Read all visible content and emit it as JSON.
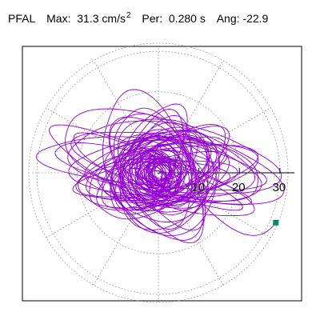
{
  "header": {
    "station": "PFAL",
    "max_label": "Max:",
    "max_value": "31.3",
    "max_unit": "cm/s",
    "max_unit_sup": "2",
    "per_label": "Per:",
    "per_value": "0.280",
    "per_unit": "s",
    "ang_label": "Ang:",
    "ang_value": "-22.9"
  },
  "chart_data": {
    "type": "scatter",
    "plot_kind": "polar particle-motion trace",
    "title": "",
    "ring_labels": [
      "10",
      "20",
      "30"
    ],
    "r_ticks": [
      10,
      20,
      30
    ],
    "r_max": 32,
    "grid": true,
    "angle": -22.9,
    "max": 31.3,
    "period": 0.28,
    "series": [
      {
        "trace_color": "#9400d3",
        "end_point": {
          "x": 29.0,
          "y": -12.3
        },
        "end_marker_color": "#008b6b"
      }
    ]
  }
}
